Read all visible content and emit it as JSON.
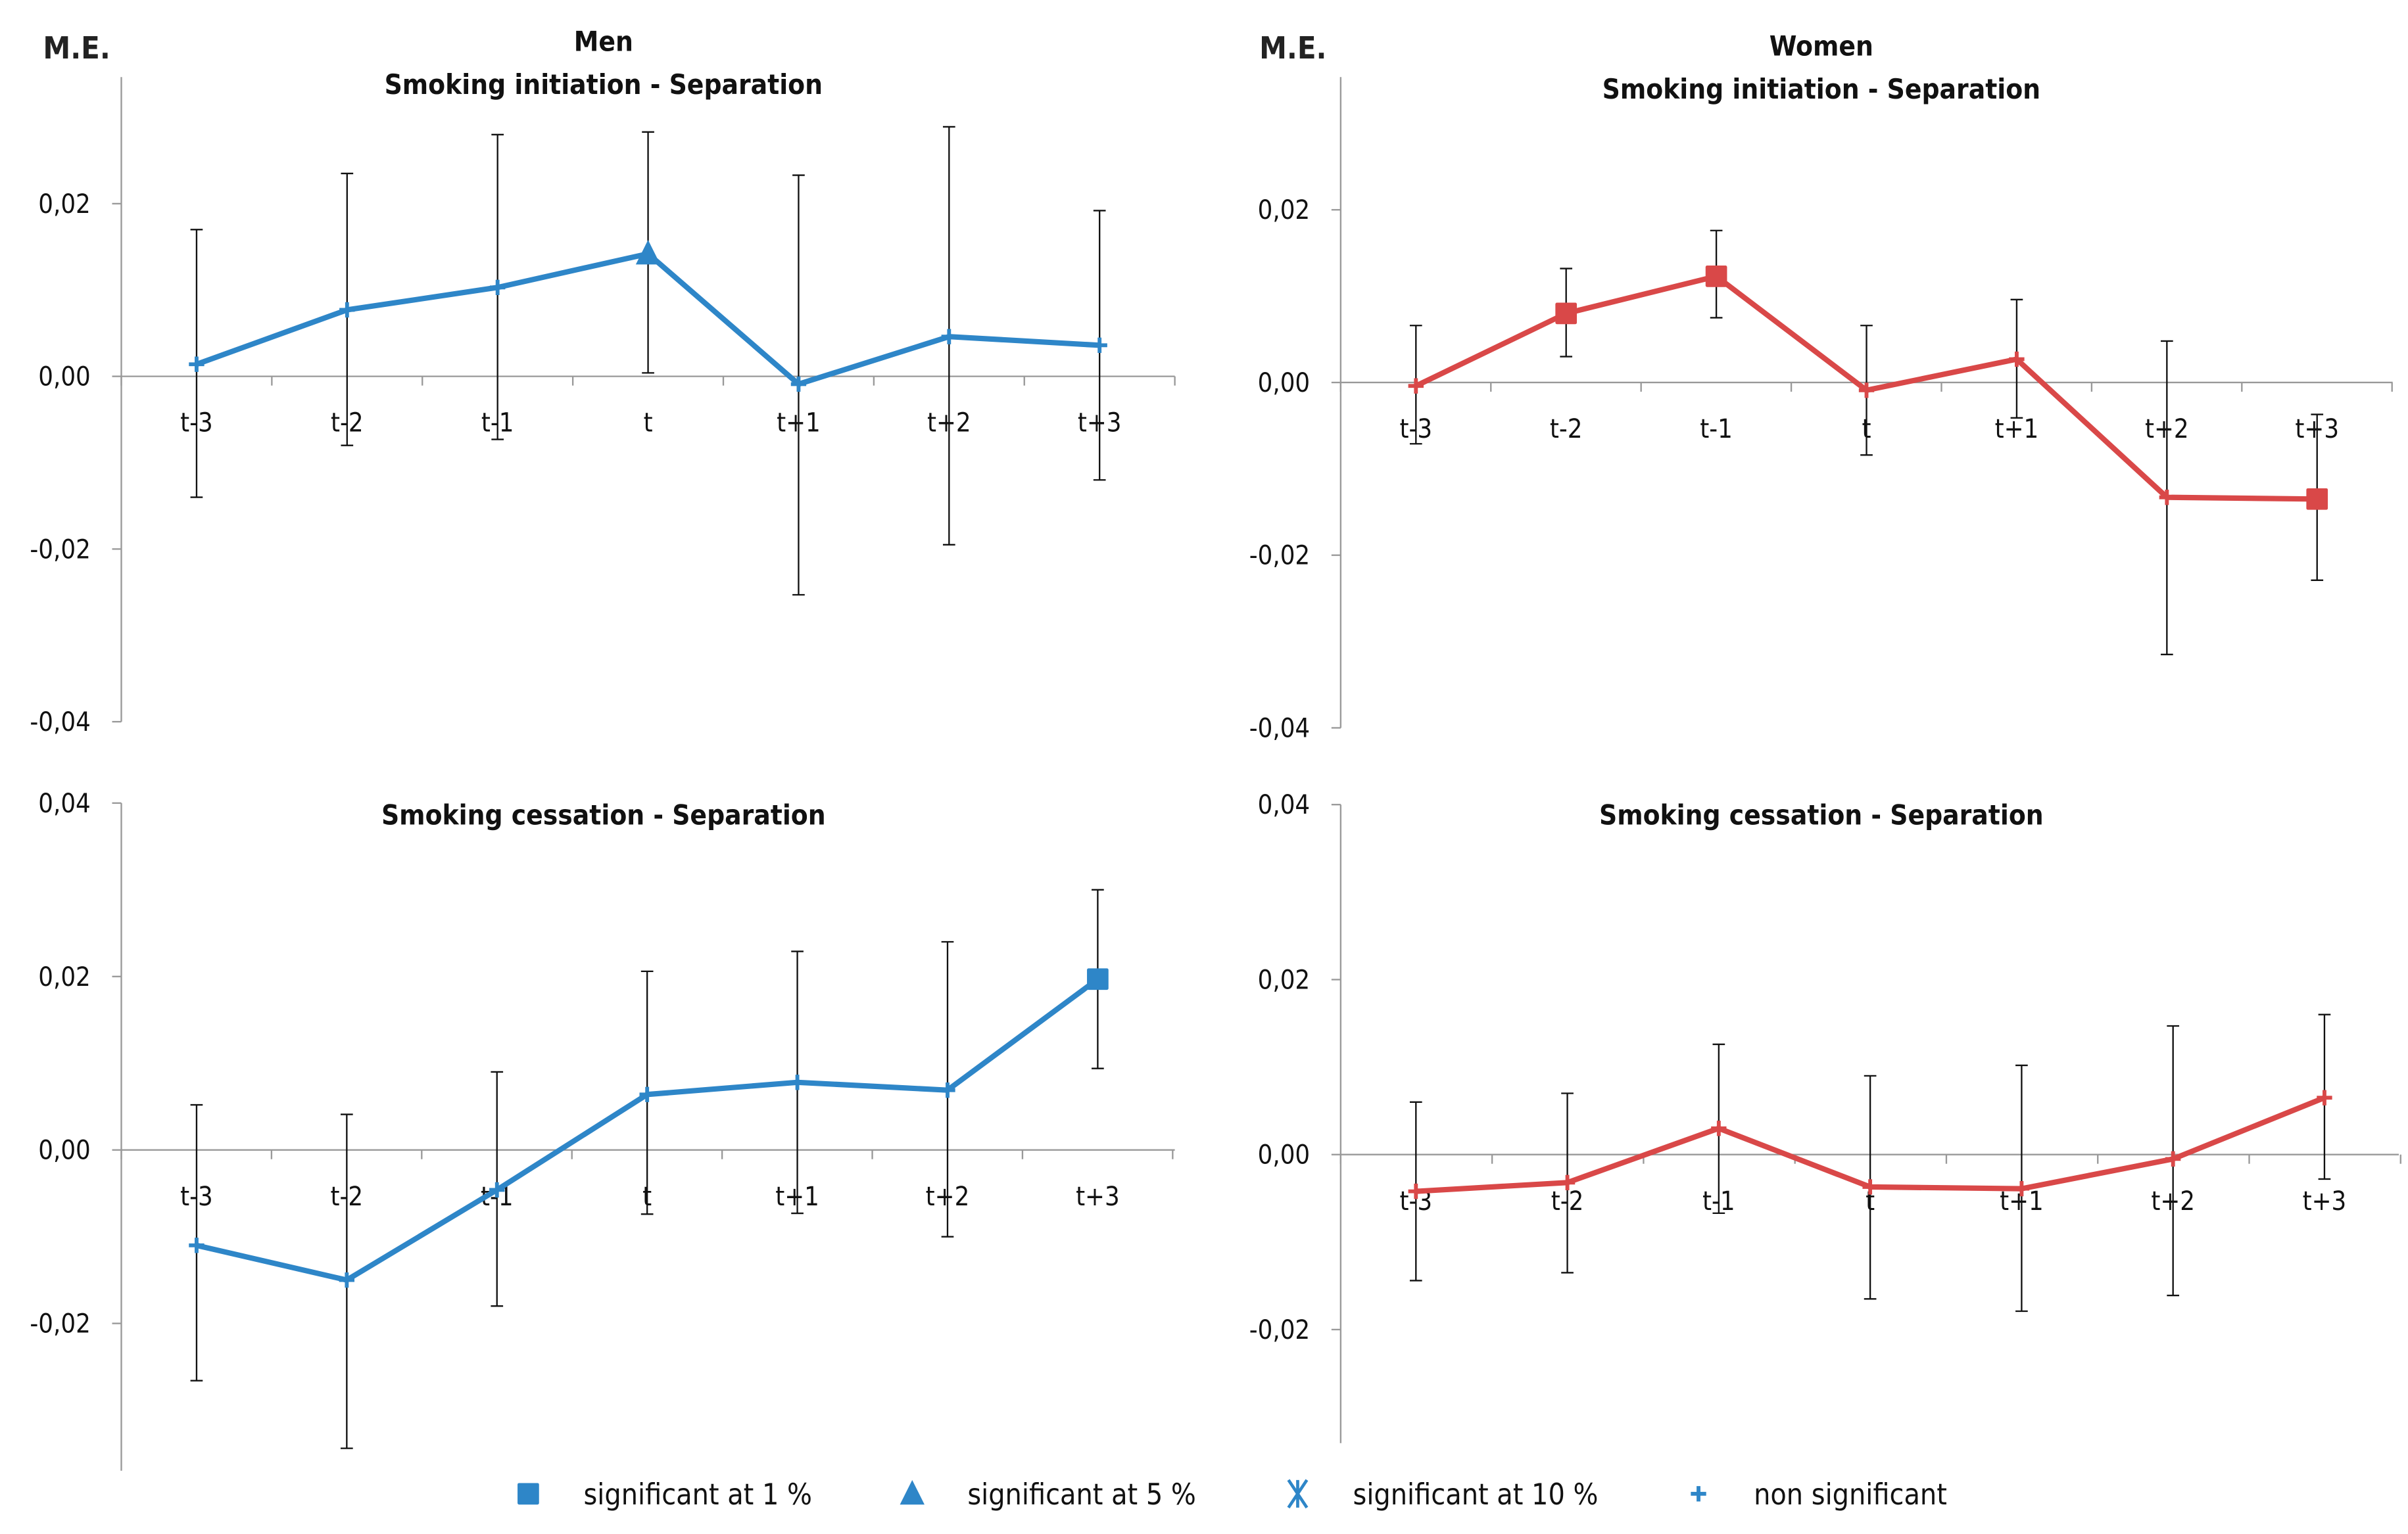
{
  "y_axis_label": "M.E.",
  "legend": [
    {
      "marker": "sig1",
      "label": "significant at 1 %"
    },
    {
      "marker": "sig5",
      "label": "significant at 5 %"
    },
    {
      "marker": "sig10",
      "label": "significant at 10 %"
    },
    {
      "marker": "nonsig",
      "label": "non significant"
    }
  ],
  "colors": {
    "men": "#2e86c8",
    "women": "#d94848",
    "axis": "#999999",
    "errorbar": "#111111"
  },
  "chart_data": [
    {
      "type": "line",
      "group": "Men",
      "title": "Men",
      "subtitle": "Smoking initiation - Separation",
      "color_key": "men",
      "ylim": [
        -0.04,
        0.035
      ],
      "yticks": [
        0.02,
        0.0,
        -0.02,
        -0.04
      ],
      "ytick_labels": [
        "0,02",
        "0,00",
        "-0,02",
        "-0,04"
      ],
      "categories": [
        "t-3",
        "t-2",
        "t-1",
        "t",
        "t+1",
        "t+2",
        "t+3"
      ],
      "values": [
        0.0014,
        0.0077,
        0.0103,
        0.0142,
        -0.0009,
        0.0046,
        0.0036
      ],
      "ci_upper": [
        0.017,
        0.0235,
        0.028,
        0.0283,
        0.0233,
        0.0289,
        0.0192
      ],
      "ci_lower": [
        -0.014,
        -0.008,
        -0.0073,
        0.0004,
        -0.0253,
        -0.0195,
        -0.012
      ],
      "significance": [
        "nonsig",
        "nonsig",
        "nonsig",
        "sig5",
        "nonsig",
        "nonsig",
        "nonsig"
      ]
    },
    {
      "type": "line",
      "group": "Women",
      "title": "Women",
      "subtitle": "Smoking initiation - Separation",
      "color_key": "women",
      "ylim": [
        -0.04,
        0.035
      ],
      "yticks": [
        0.02,
        0.0,
        -0.02,
        -0.04
      ],
      "ytick_labels": [
        "0,02",
        "0,00",
        "-0,02",
        "-0,04"
      ],
      "categories": [
        "t-3",
        "t-2",
        "t-1",
        "t",
        "t+1",
        "t+2",
        "t+3"
      ],
      "values": [
        -0.0004,
        0.008,
        0.0123,
        -0.0009,
        0.0027,
        -0.0133,
        -0.0135
      ],
      "ci_upper": [
        0.0066,
        0.0132,
        0.0176,
        0.0066,
        0.0096,
        0.0048,
        -0.0037
      ],
      "ci_lower": [
        -0.0071,
        0.003,
        0.0075,
        -0.0084,
        -0.0041,
        -0.0315,
        -0.0229
      ],
      "significance": [
        "nonsig",
        "sig1",
        "sig1",
        "nonsig",
        "nonsig",
        "nonsig",
        "sig1"
      ]
    },
    {
      "type": "line",
      "group": "Men",
      "title": "",
      "subtitle": "Smoking cessation - Separation",
      "color_key": "men",
      "ylim": [
        -0.036,
        0.04
      ],
      "yticks": [
        0.04,
        0.02,
        0.0,
        -0.02
      ],
      "ytick_labels": [
        "0,04",
        "0,02",
        "0,00",
        "-0,02"
      ],
      "categories": [
        "t-3",
        "t-2",
        "t-1",
        "t",
        "t+1",
        "t+2",
        "t+3"
      ],
      "values": [
        -0.011,
        -0.015,
        -0.0046,
        0.0064,
        0.0078,
        0.0069,
        0.0197
      ],
      "ci_upper": [
        0.0052,
        0.0041,
        0.009,
        0.0206,
        0.0229,
        0.024,
        0.03
      ],
      "ci_lower": [
        -0.0266,
        -0.0344,
        -0.018,
        -0.0074,
        -0.0073,
        -0.01,
        0.0094
      ],
      "significance": [
        "nonsig",
        "nonsig",
        "nonsig",
        "nonsig",
        "nonsig",
        "nonsig",
        "sig1"
      ]
    },
    {
      "type": "line",
      "group": "Women",
      "title": "",
      "subtitle": "Smoking cessation - Separation",
      "color_key": "women",
      "ylim": [
        -0.033,
        0.04
      ],
      "yticks": [
        0.04,
        0.02,
        0.0,
        -0.02
      ],
      "ytick_labels": [
        "0,04",
        "0,02",
        "0,00",
        "-0,02"
      ],
      "categories": [
        "t-3",
        "t-2",
        "t-1",
        "t",
        "t+1",
        "t+2",
        "t+3"
      ],
      "values": [
        -0.0042,
        -0.0032,
        0.003,
        -0.0037,
        -0.0039,
        -0.0005,
        0.0065
      ],
      "ci_upper": [
        0.006,
        0.007,
        0.0126,
        0.009,
        0.0102,
        0.0147,
        0.016
      ],
      "ci_lower": [
        -0.0144,
        -0.0135,
        -0.0067,
        -0.0165,
        -0.0179,
        -0.0161,
        -0.0028
      ],
      "significance": [
        "nonsig",
        "nonsig",
        "nonsig",
        "nonsig",
        "nonsig",
        "nonsig",
        "nonsig"
      ]
    }
  ]
}
